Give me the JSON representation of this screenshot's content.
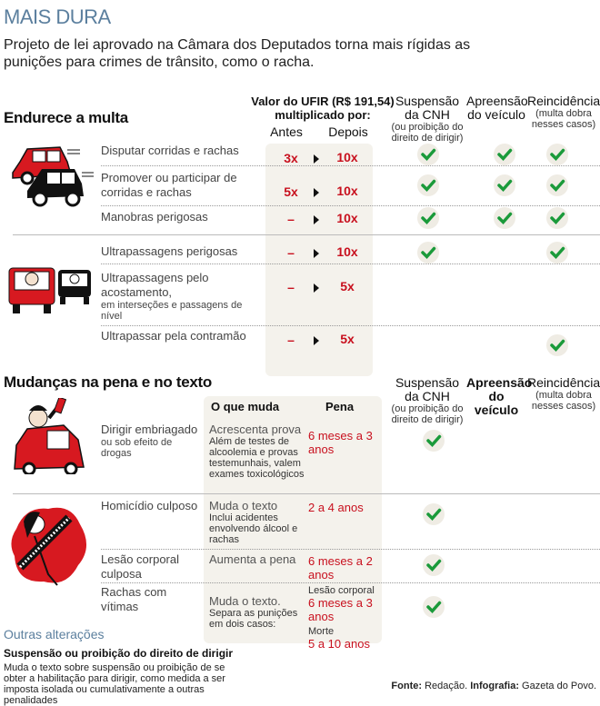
{
  "title": "MAIS DURA",
  "subtitle": "Projeto de lei aprovado na Câmara dos Deputados torna mais rígidas as punições para crimes de trânsito, como o racha.",
  "colors": {
    "accent_red": "#c8101e",
    "check_green": "#1a9a3a",
    "title_blue": "#5b7f9e",
    "panel": "#f4f2ec"
  },
  "columns": {
    "ufir": "Valor do UFIR  (R$ 191,54)",
    "ufir2": "multiplicado por:",
    "antes": "Antes",
    "depois": "Depois",
    "susp": "Suspensão",
    "susp2": "da CNH",
    "susp_note": "(ou proibição do direito de dirigir)",
    "apre": "Apreensão",
    "apre2": "do veículo",
    "rein": "Reincidência",
    "rein_note": "(multa dobra nesses casos)"
  },
  "section1": {
    "title": "Endurece a multa",
    "rows": [
      {
        "label": "Disputar corridas e rachas",
        "antes": "3x",
        "depois": "10x",
        "susp": true,
        "apre": true,
        "rein": true
      },
      {
        "label": "Promover ou participar de corridas e rachas",
        "antes": "5x",
        "depois": "10x",
        "susp": true,
        "apre": true,
        "rein": true
      },
      {
        "label": "Manobras perigosas",
        "antes": "–",
        "depois": "10x",
        "susp": true,
        "apre": true,
        "rein": true
      },
      {
        "label": "Ultrapassagens perigosas",
        "antes": "–",
        "depois": "10x",
        "susp": true,
        "apre": false,
        "rein": true
      },
      {
        "label": "Ultrapassagens pelo acostamento,",
        "note": "em interseções e passagens de nível",
        "antes": "–",
        "depois": "5x",
        "susp": false,
        "apre": false,
        "rein": false
      },
      {
        "label": "Ultrapassar pela contramão",
        "antes": "–",
        "depois": "5x",
        "susp": false,
        "apre": false,
        "rein": true
      }
    ]
  },
  "section2": {
    "title": "Mudanças na pena e no texto",
    "col_muda": "O que muda",
    "col_pena": "Pena",
    "rows": [
      {
        "label": "Dirigir embriagado",
        "note": "ou sob efeito de drogas",
        "muda": "Acrescenta prova",
        "muda_note": "Além de testes de alcoolemia e provas testemunhais, valem exames toxicológicos",
        "pena": "6 meses a 3 anos",
        "susp": true
      },
      {
        "label": "Homicídio culposo",
        "muda": "Muda o texto",
        "muda_note": "Inclui acidentes envolvendo álcool e rachas",
        "pena": "2 a 4 anos",
        "susp": true
      },
      {
        "label": "Lesão corporal culposa",
        "muda": "Aumenta a pena",
        "pena": "6 meses a 2 anos",
        "susp": true
      },
      {
        "label": "Rachas com vítimas",
        "muda": "Muda o texto.",
        "muda_note": "Separa as punições em dois casos:",
        "pena_a_label": "Lesão corporal",
        "pena_a": "6 meses a 3 anos",
        "pena_b_label": "Morte",
        "pena_b": "5 a 10 anos",
        "susp": true
      }
    ]
  },
  "outras": {
    "title": "Outras alterações",
    "subtitle": "Suspensão ou proibição do direito de dirigir",
    "text": "Muda o texto sobre suspensão ou proibição de se obter a habilitação para dirigir, como medida a ser imposta isolada ou cumulativamente a outras penalidades"
  },
  "source": {
    "fonte_label": "Fonte:",
    "fonte": " Redação. ",
    "info_label": "Infografia:",
    "info": " Gazeta do Povo."
  }
}
